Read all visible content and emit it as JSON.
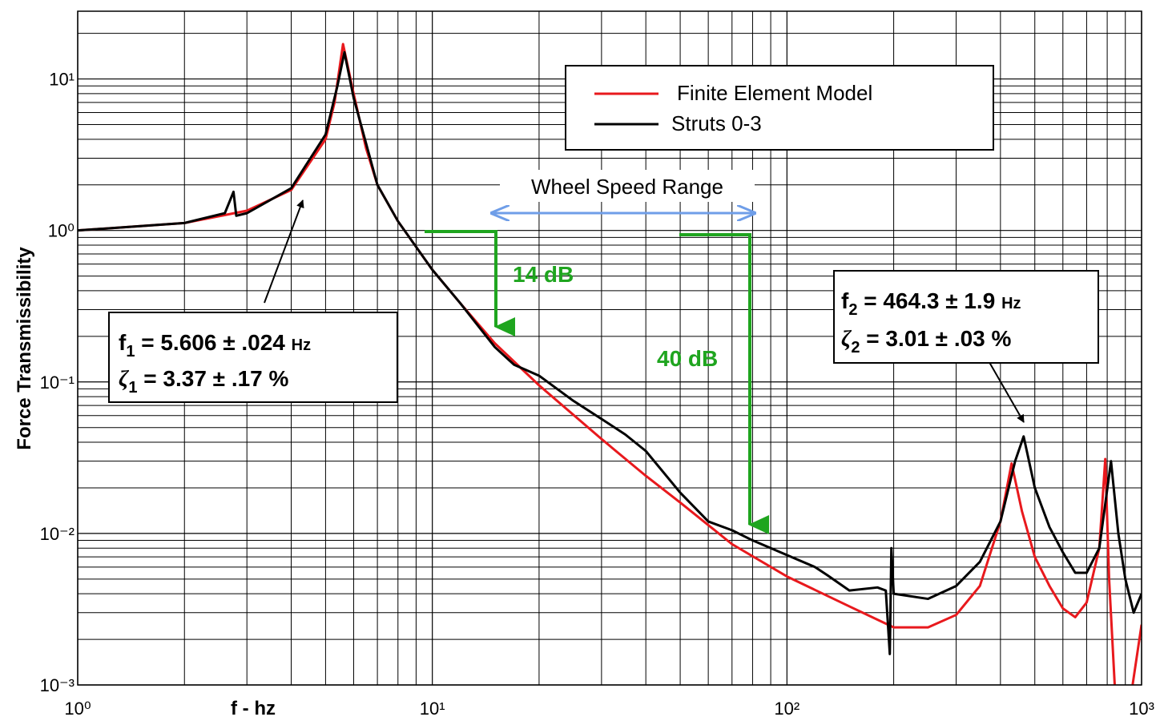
{
  "chart_data": {
    "type": "line",
    "xlabel": "f - hz",
    "ylabel": "Force Transmissibility",
    "xscale": "log",
    "yscale": "log",
    "xlim": [
      1,
      1000
    ],
    "ylim": [
      0.001,
      28
    ],
    "xticks": [
      {
        "value": 1,
        "label": "10⁰"
      },
      {
        "value": 10,
        "label": "10¹"
      },
      {
        "value": 100,
        "label": "10²"
      },
      {
        "value": 1000,
        "label": "10³"
      }
    ],
    "yticks": [
      {
        "value": 0.001,
        "label": "10⁻³"
      },
      {
        "value": 0.01,
        "label": "10⁻²"
      },
      {
        "value": 0.1,
        "label": "10⁻¹"
      },
      {
        "value": 1,
        "label": "10⁰"
      },
      {
        "value": 10,
        "label": "10¹"
      }
    ],
    "grid": true,
    "xminorticks": [
      2,
      3,
      4,
      5,
      6,
      7,
      8,
      9,
      20,
      30,
      40,
      50,
      60,
      70,
      80,
      90,
      200,
      300,
      400,
      500,
      600,
      700,
      800,
      900
    ],
    "yminorticks": [
      0.002,
      0.003,
      0.004,
      0.005,
      0.006,
      0.007,
      0.008,
      0.009,
      0.02,
      0.03,
      0.04,
      0.05,
      0.06,
      0.07,
      0.08,
      0.09,
      0.2,
      0.3,
      0.4,
      0.5,
      0.6,
      0.7,
      0.8,
      0.9,
      2,
      3,
      4,
      5,
      6,
      7,
      8,
      9,
      20
    ],
    "legend": "top-right",
    "series": [
      {
        "name": "Finite Element Model",
        "color": "#e8191d",
        "x": [
          1,
          2,
          3,
          4,
          5,
          5.3,
          5.6,
          6,
          6.5,
          7,
          8,
          10,
          12,
          15,
          20,
          30,
          40,
          50,
          70,
          100,
          150,
          200,
          250,
          300,
          350,
          400,
          430,
          460,
          500,
          550,
          600,
          650,
          700,
          760,
          790,
          810,
          840,
          880,
          930,
          1000
        ],
        "values": [
          1.0,
          1.12,
          1.35,
          1.85,
          4.0,
          7,
          17,
          8,
          3.5,
          2.0,
          1.15,
          0.55,
          0.33,
          0.18,
          0.095,
          0.042,
          0.024,
          0.016,
          0.0085,
          0.0052,
          0.0033,
          0.0024,
          0.0024,
          0.0029,
          0.0045,
          0.012,
          0.029,
          0.014,
          0.007,
          0.0045,
          0.0032,
          0.0028,
          0.0035,
          0.008,
          0.031,
          0.005,
          0.001,
          0.0007,
          0.0008,
          0.0025
        ]
      },
      {
        "name": "Struts 0-3",
        "color": "#000000",
        "x": [
          1,
          2,
          2.6,
          2.75,
          2.8,
          3,
          4,
          5,
          5.4,
          5.65,
          6,
          7,
          8,
          10,
          12,
          15,
          17,
          20,
          25,
          30,
          35,
          40,
          50,
          60,
          70,
          80,
          100,
          120,
          130,
          150,
          180,
          190,
          195,
          197,
          200,
          250,
          300,
          350,
          400,
          440,
          465,
          500,
          550,
          600,
          650,
          700,
          760,
          820,
          860,
          900,
          950,
          1000
        ],
        "values": [
          1.0,
          1.12,
          1.3,
          1.8,
          1.25,
          1.3,
          1.9,
          4.3,
          9,
          15,
          7.5,
          2.0,
          1.15,
          0.55,
          0.33,
          0.17,
          0.13,
          0.11,
          0.075,
          0.057,
          0.045,
          0.035,
          0.0186,
          0.012,
          0.0105,
          0.009,
          0.0072,
          0.006,
          0.0053,
          0.0042,
          0.0044,
          0.0042,
          0.0016,
          0.008,
          0.004,
          0.0037,
          0.0045,
          0.0065,
          0.012,
          0.03,
          0.0437,
          0.02,
          0.011,
          0.0075,
          0.0055,
          0.0055,
          0.008,
          0.03,
          0.01,
          0.005,
          0.003,
          0.004
        ]
      }
    ],
    "annotations": {
      "range": "Wheel Speed Range",
      "drop1": "14 dB",
      "drop2": "40 dB",
      "mode1": {
        "symbol": "f",
        "sub": "1",
        "text": " = 5.606 ± .024 ",
        "unit": "Hz",
        "symbol2": "ζ",
        "sub2": "1",
        "text2": " = 3.37 ± .17  %"
      },
      "mode2": {
        "symbol": "f",
        "sub": "2",
        "text": " = 464.3 ± 1.9 ",
        "unit": "Hz",
        "symbol2": "ζ",
        "sub2": "2",
        "text2": " = 3.01 ± .03 %"
      }
    }
  }
}
